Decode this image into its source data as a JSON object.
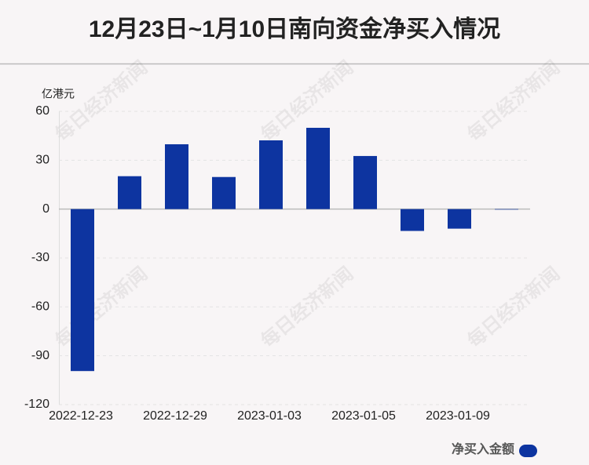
{
  "chart_data": {
    "type": "bar",
    "title": "12月23日~1月10日南向资金净买入情况",
    "y_unit": "亿港元",
    "watermark": "每日经济新闻",
    "categories": [
      "2022-12-23",
      null,
      "2022-12-29",
      null,
      "2023-01-03",
      null,
      "2023-01-05",
      null,
      "2023-01-09",
      null
    ],
    "series": [
      {
        "name": "净买入金额",
        "color": "#0d34a0",
        "values": [
          -99.4,
          20.2,
          39.8,
          19.7,
          42.2,
          49.9,
          32.6,
          -13.4,
          -12.0,
          -0.3
        ]
      }
    ],
    "ylim": [
      -120,
      60
    ],
    "yticks": [
      -120,
      -90,
      -60,
      -30,
      0,
      30,
      60
    ],
    "grid": true
  }
}
